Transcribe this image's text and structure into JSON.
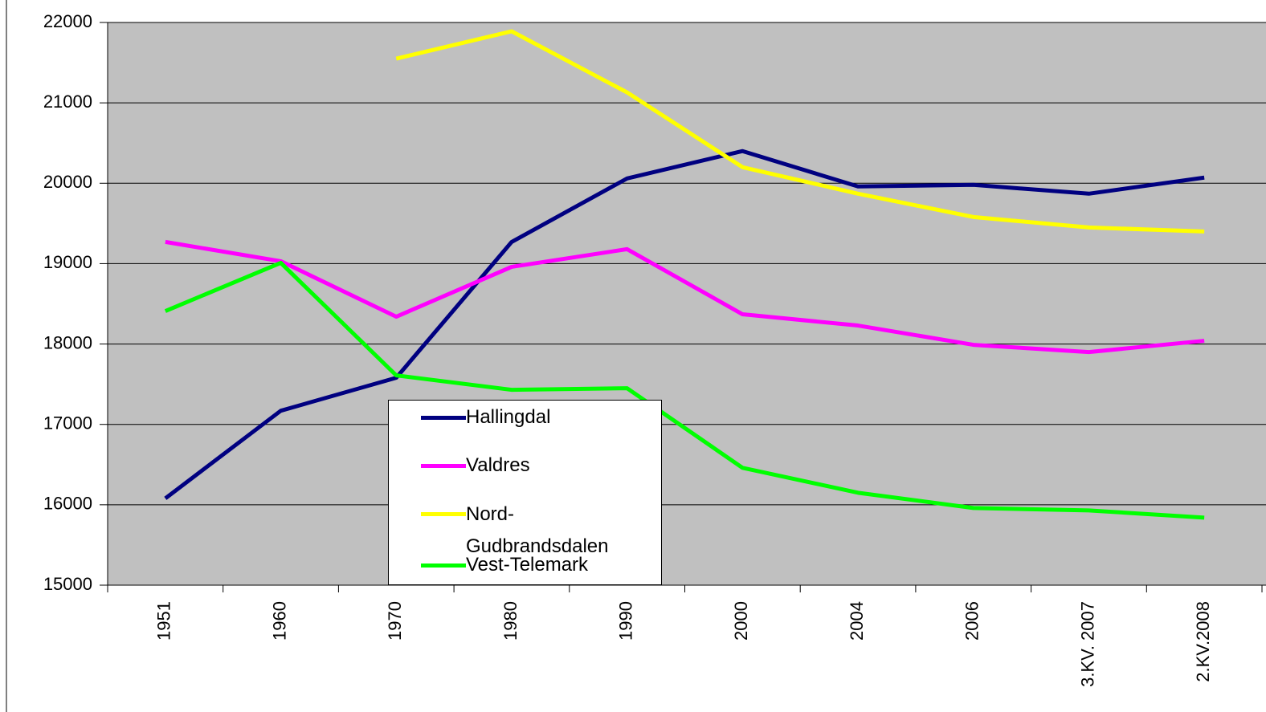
{
  "chart_data": {
    "type": "line",
    "categories": [
      "1951",
      "1960",
      "1970",
      "1980",
      "1990",
      "2000",
      "2004",
      "2006",
      "3.KV. 2007",
      "2.KV.2008"
    ],
    "series": [
      {
        "name": "Hallingdal",
        "color": "#000080",
        "values": [
          16080,
          17170,
          17580,
          19270,
          20060,
          20400,
          19960,
          19980,
          19870,
          20070
        ]
      },
      {
        "name": "Valdres",
        "color": "#ff00ff",
        "values": [
          19270,
          19030,
          18340,
          18960,
          19180,
          18370,
          18230,
          17990,
          17900,
          18040
        ]
      },
      {
        "name": "Nord-Gudbrandsdalen",
        "color": "#ffff00",
        "values": [
          null,
          null,
          21550,
          21890,
          21130,
          20200,
          19870,
          19580,
          19450,
          19400
        ]
      },
      {
        "name": "Vest-Telemark",
        "color": "#00ff00",
        "values": [
          18410,
          19010,
          17610,
          17430,
          17450,
          16460,
          16150,
          15960,
          15930,
          15840
        ]
      }
    ],
    "ylim": [
      15000,
      22000
    ],
    "yticks": [
      15000,
      16000,
      17000,
      18000,
      19000,
      20000,
      21000,
      22000
    ],
    "grid": true
  }
}
